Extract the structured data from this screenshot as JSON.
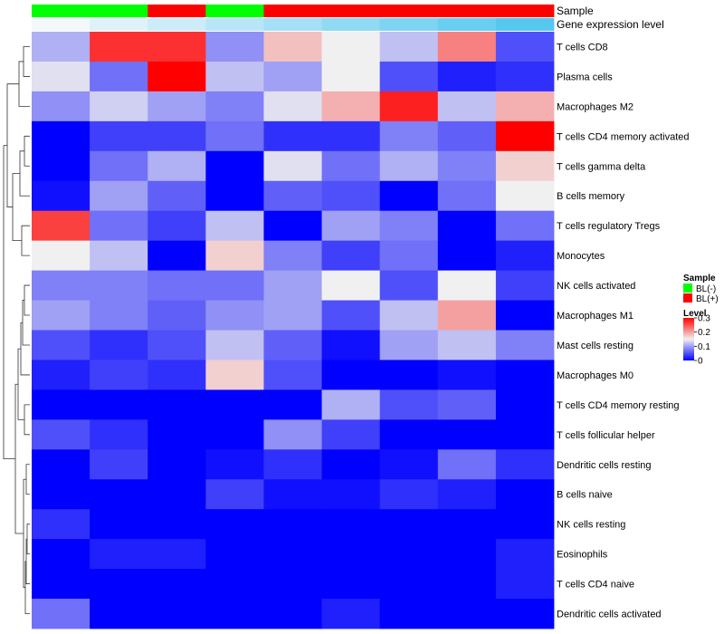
{
  "chart_data": {
    "type": "heatmap",
    "rows": [
      "T cells CD8",
      "Plasma cells",
      "Macrophages M2",
      "T cells CD4 memory activated",
      "T cells gamma delta",
      "B cells memory",
      "T cells regulatory  Tregs",
      "Monocytes",
      "NK cells activated",
      "Macrophages M1",
      "Mast cells resting",
      "Macrophages M0",
      "T cells CD4 memory resting",
      "T cells follicular helper",
      "Dendritic cells resting",
      "B cells naive",
      "NK cells resting",
      "Eosinophils",
      "T cells CD4 naive",
      "Dendritic cells activated"
    ],
    "columns": 9,
    "values": [
      [
        0.11,
        0.27,
        0.27,
        0.09,
        0.18,
        0.15,
        0.12,
        0.22,
        0.05
      ],
      [
        0.14,
        0.07,
        0.3,
        0.12,
        0.1,
        0.15,
        0.05,
        0.02,
        0.03
      ],
      [
        0.09,
        0.13,
        0.1,
        0.08,
        0.14,
        0.19,
        0.28,
        0.12,
        0.19
      ],
      [
        0.0,
        0.04,
        0.04,
        0.07,
        0.03,
        0.03,
        0.08,
        0.06,
        0.3
      ],
      [
        0.0,
        0.07,
        0.11,
        0.0,
        0.14,
        0.07,
        0.11,
        0.08,
        0.17
      ],
      [
        0.01,
        0.1,
        0.06,
        0.0,
        0.06,
        0.05,
        0.0,
        0.07,
        0.15
      ],
      [
        0.26,
        0.07,
        0.04,
        0.12,
        0.0,
        0.1,
        0.08,
        0.0,
        0.07
      ],
      [
        0.15,
        0.12,
        0.0,
        0.17,
        0.08,
        0.04,
        0.07,
        0.0,
        0.02
      ],
      [
        0.08,
        0.08,
        0.07,
        0.07,
        0.1,
        0.15,
        0.05,
        0.15,
        0.04
      ],
      [
        0.1,
        0.08,
        0.06,
        0.09,
        0.1,
        0.05,
        0.12,
        0.2,
        0.0
      ],
      [
        0.05,
        0.03,
        0.05,
        0.12,
        0.06,
        0.01,
        0.1,
        0.12,
        0.08
      ],
      [
        0.02,
        0.04,
        0.03,
        0.17,
        0.05,
        0.0,
        0.0,
        0.01,
        0.0
      ],
      [
        0.0,
        0.0,
        0.0,
        0.0,
        0.0,
        0.11,
        0.05,
        0.06,
        0.0
      ],
      [
        0.05,
        0.03,
        0.0,
        0.0,
        0.09,
        0.04,
        0.0,
        0.0,
        0.0
      ],
      [
        0.0,
        0.04,
        0.0,
        0.01,
        0.03,
        0.0,
        0.01,
        0.07,
        0.03
      ],
      [
        0.0,
        0.0,
        0.0,
        0.04,
        0.01,
        0.01,
        0.03,
        0.02,
        0.0
      ],
      [
        0.03,
        0.0,
        0.0,
        0.0,
        0.0,
        0.0,
        0.0,
        0.0,
        0.0
      ],
      [
        0.0,
        0.02,
        0.02,
        0.0,
        0.0,
        0.0,
        0.0,
        0.0,
        0.02
      ],
      [
        0.0,
        0.0,
        0.0,
        0.0,
        0.0,
        0.0,
        0.0,
        0.0,
        0.02
      ],
      [
        0.07,
        0.0,
        0.0,
        0.0,
        0.0,
        0.02,
        0.0,
        0.0,
        0.0
      ]
    ],
    "sample_track": {
      "label": "Sample",
      "groups": [
        "BL(-)",
        "BL(-)",
        "BL(+)",
        "BL(-)",
        "BL(+)",
        "BL(+)",
        "BL(+)",
        "BL(+)",
        "BL(+)"
      ]
    },
    "expression_track": {
      "label": "Gene expression level",
      "values": [
        1,
        2,
        3,
        4,
        5,
        6,
        7,
        8,
        9
      ]
    },
    "legend": {
      "position": "right",
      "sample": {
        "title": "Sample",
        "entries": [
          {
            "label": "BL(-)",
            "color": "#00ff00"
          },
          {
            "label": "BL(+)",
            "color": "#ff0000"
          }
        ]
      },
      "level": {
        "title": "Level",
        "ticks": [
          "0.3",
          "0.2",
          "0.1",
          "0"
        ],
        "tick_values": [
          0.3,
          0.2,
          0.1,
          0
        ],
        "range": [
          0,
          0.3
        ]
      }
    },
    "colors": {
      "low": "#0000ff",
      "mid": "#f0f0f0",
      "high": "#ff0000",
      "group_neg": "#00ff00",
      "group_pos": "#ff0000",
      "expr_low": "#f3f8fb",
      "expr_high": "#56c8f0"
    },
    "row_dendrogram": true
  }
}
